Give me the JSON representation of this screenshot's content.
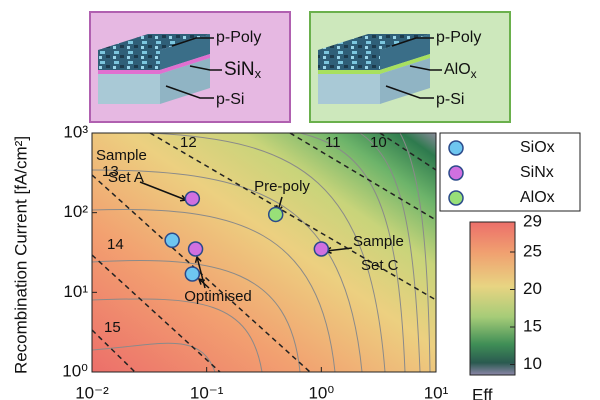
{
  "chart_data": {
    "type": "scatter",
    "insets": [
      {
        "layers": [
          {
            "text": "p-Poly"
          },
          {
            "text": "SiN",
            "sub": "x"
          },
          {
            "text": "p-Si"
          }
        ]
      },
      {
        "layers": [
          {
            "text": "p-Poly"
          },
          {
            "text": "AlO",
            "sub": "x"
          },
          {
            "text": "p-Si"
          }
        ]
      }
    ],
    "ylabel": "Recombination Current [fA/cm²]",
    "xlim": [
      0.01,
      10
    ],
    "ylim": [
      1,
      1000
    ],
    "xscale": "log",
    "yscale": "log",
    "xticks": [
      {
        "value": 0.01,
        "label": "10⁻²"
      },
      {
        "value": 0.1,
        "label": "10⁻¹"
      },
      {
        "value": 1,
        "label": "10⁰"
      },
      {
        "value": 10,
        "label": "10¹"
      }
    ],
    "yticks": [
      {
        "value": 1,
        "label": "10⁰"
      },
      {
        "value": 10,
        "label": "10¹"
      },
      {
        "value": 100,
        "label": "10²"
      },
      {
        "value": 1000,
        "label": "10³"
      }
    ],
    "series": [
      {
        "name": "SiOx",
        "color": "#6ec6f0",
        "x": [
          0.05,
          0.075
        ],
        "values": [
          45,
          17
        ]
      },
      {
        "name": "SiNx",
        "color": "#d070e0",
        "x": [
          0.075,
          0.08,
          1
        ],
        "values": [
          150,
          35,
          35
        ]
      },
      {
        "name": "AlOx",
        "color": "#98e078",
        "x": [
          0.4
        ],
        "values": [
          95
        ]
      }
    ],
    "contour_labels": [
      12,
      11,
      10,
      13,
      14,
      15
    ],
    "annotations": [
      {
        "lines": [
          "Sample",
          "Set A"
        ]
      },
      {
        "lines": [
          "Pre-poly"
        ]
      },
      {
        "lines": [
          "Sample",
          "Set C"
        ]
      },
      {
        "lines": [
          "Optimised"
        ]
      }
    ],
    "colorbar": {
      "label": "Eff",
      "lim": [
        8.6,
        29
      ],
      "ticks": [
        10,
        15,
        20,
        25,
        29
      ]
    }
  }
}
